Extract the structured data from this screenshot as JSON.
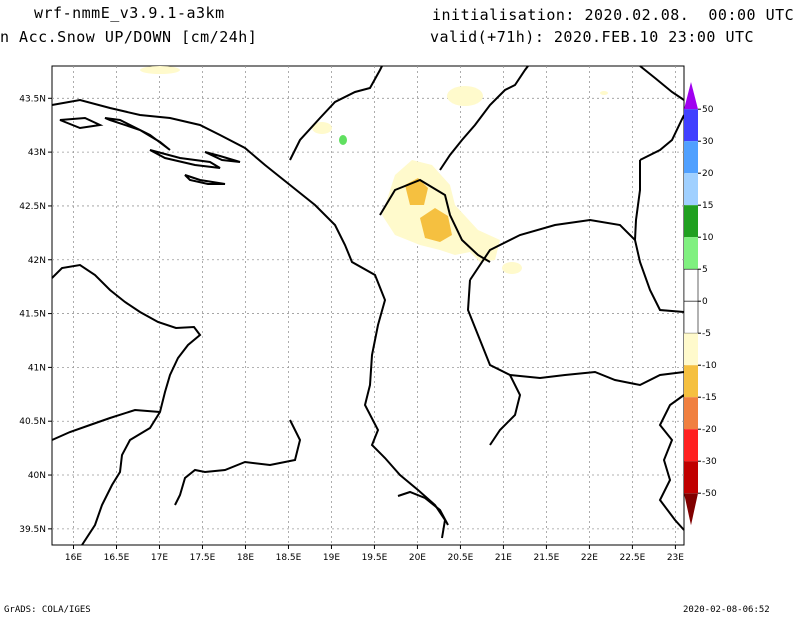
{
  "header": {
    "model": "wrf-nmmE_v3.9.1-a3km",
    "variable": "n Acc.Snow UP/DOWN [cm/24h]",
    "init": "initialisation: 2020.02.08.  00:00 UTC",
    "valid": "valid(+71h): 2020.FEB.10 23:00 UTC"
  },
  "map": {
    "lon_range": [
      15.75,
      23.1
    ],
    "lat_range": [
      39.35,
      43.8
    ],
    "lat_ticks": [
      "43.5N",
      "43N",
      "42.5N",
      "42N",
      "41.5N",
      "41N",
      "40.5N",
      "40N",
      "39.5N"
    ],
    "lon_ticks": [
      "16E",
      "16.5E",
      "17E",
      "17.5E",
      "18E",
      "18.5E",
      "19E",
      "19.5E",
      "20E",
      "20.5E",
      "21E",
      "21.5E",
      "22E",
      "22.5E",
      "23E"
    ],
    "grid": true
  },
  "colorbar": {
    "labels": [
      "50",
      "30",
      "20",
      "15",
      "10",
      "5",
      "0",
      "-5",
      "-10",
      "-15",
      "-20",
      "-30",
      "-50"
    ],
    "colors": [
      "#a000f0",
      "#4040ff",
      "#50a0ff",
      "#a0d0ff",
      "#20a020",
      "#80f080",
      "#ffffff",
      "#ffffff",
      "#fffacc",
      "#f5c040",
      "#f08040",
      "#ff2020",
      "#c00000",
      "#800000"
    ]
  },
  "footer": {
    "left": "GrADS: COLA/IGES",
    "right": "2020-02-08-06:52"
  }
}
